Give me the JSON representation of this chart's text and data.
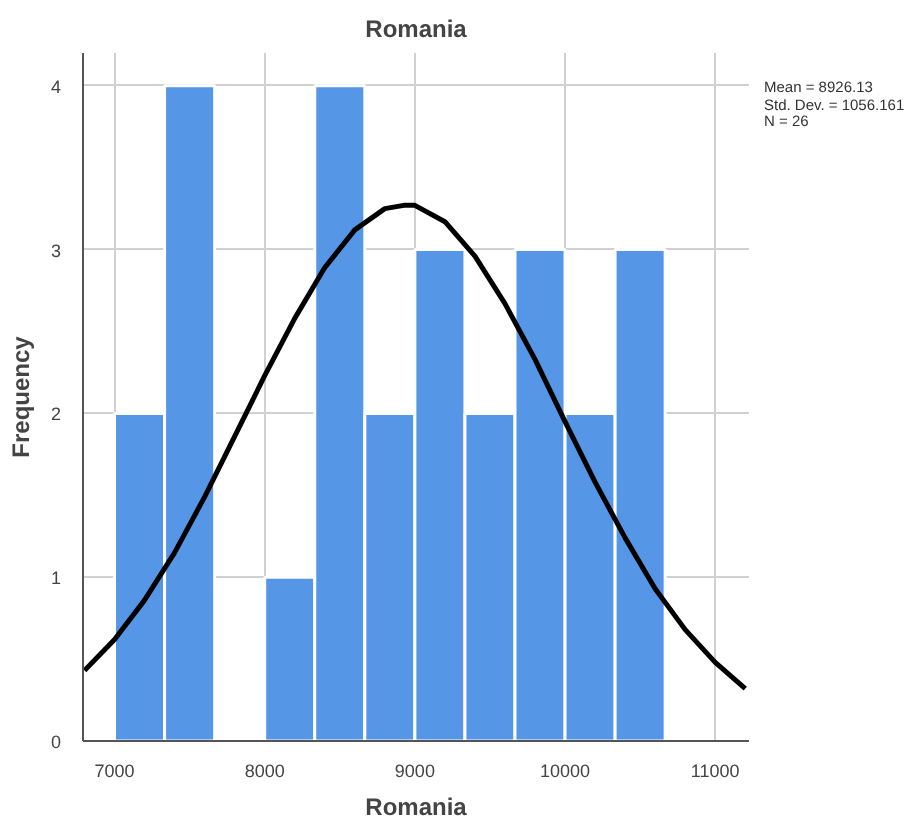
{
  "chart_data": {
    "type": "histogram",
    "title": "Romania",
    "xlabel": "Romania",
    "ylabel": "Frequency",
    "bins": [
      7000,
      7333.33,
      7666.67,
      8000,
      8333.33,
      8666.67,
      9000,
      9333.33,
      9666.67,
      10000,
      10333.33,
      10666.67
    ],
    "values": [
      2,
      4,
      0,
      1,
      4,
      2,
      3,
      2,
      3,
      2,
      3
    ],
    "color": "#5596e6",
    "series": [
      {
        "type": "line",
        "color": "#000000",
        "x": [
          6800,
          7000,
          7200,
          7400,
          7600,
          7800,
          8000,
          8200,
          8400,
          8600,
          8800,
          8926,
          9000,
          9200,
          9400,
          9600,
          9800,
          10000,
          10200,
          10400,
          10600,
          10800,
          11000,
          11200
        ],
        "values": [
          0.43,
          0.62,
          0.86,
          1.15,
          1.49,
          1.86,
          2.23,
          2.58,
          2.89,
          3.12,
          3.25,
          3.27,
          3.27,
          3.17,
          2.96,
          2.67,
          2.33,
          1.95,
          1.58,
          1.24,
          0.93,
          0.68,
          0.48,
          0.32
        ]
      }
    ],
    "xlim": [
      6790,
      11225
    ],
    "ylim": [
      0,
      4.2
    ],
    "xticks": [
      7000,
      8000,
      9000,
      10000,
      11000
    ],
    "yticks": [
      0,
      1,
      2,
      3,
      4
    ],
    "grid": true,
    "line_style": "solid",
    "marker": "none",
    "annotations": [
      "Mean = 8926.13",
      "Std. Dev. = 1056.161",
      "N = 26"
    ]
  }
}
